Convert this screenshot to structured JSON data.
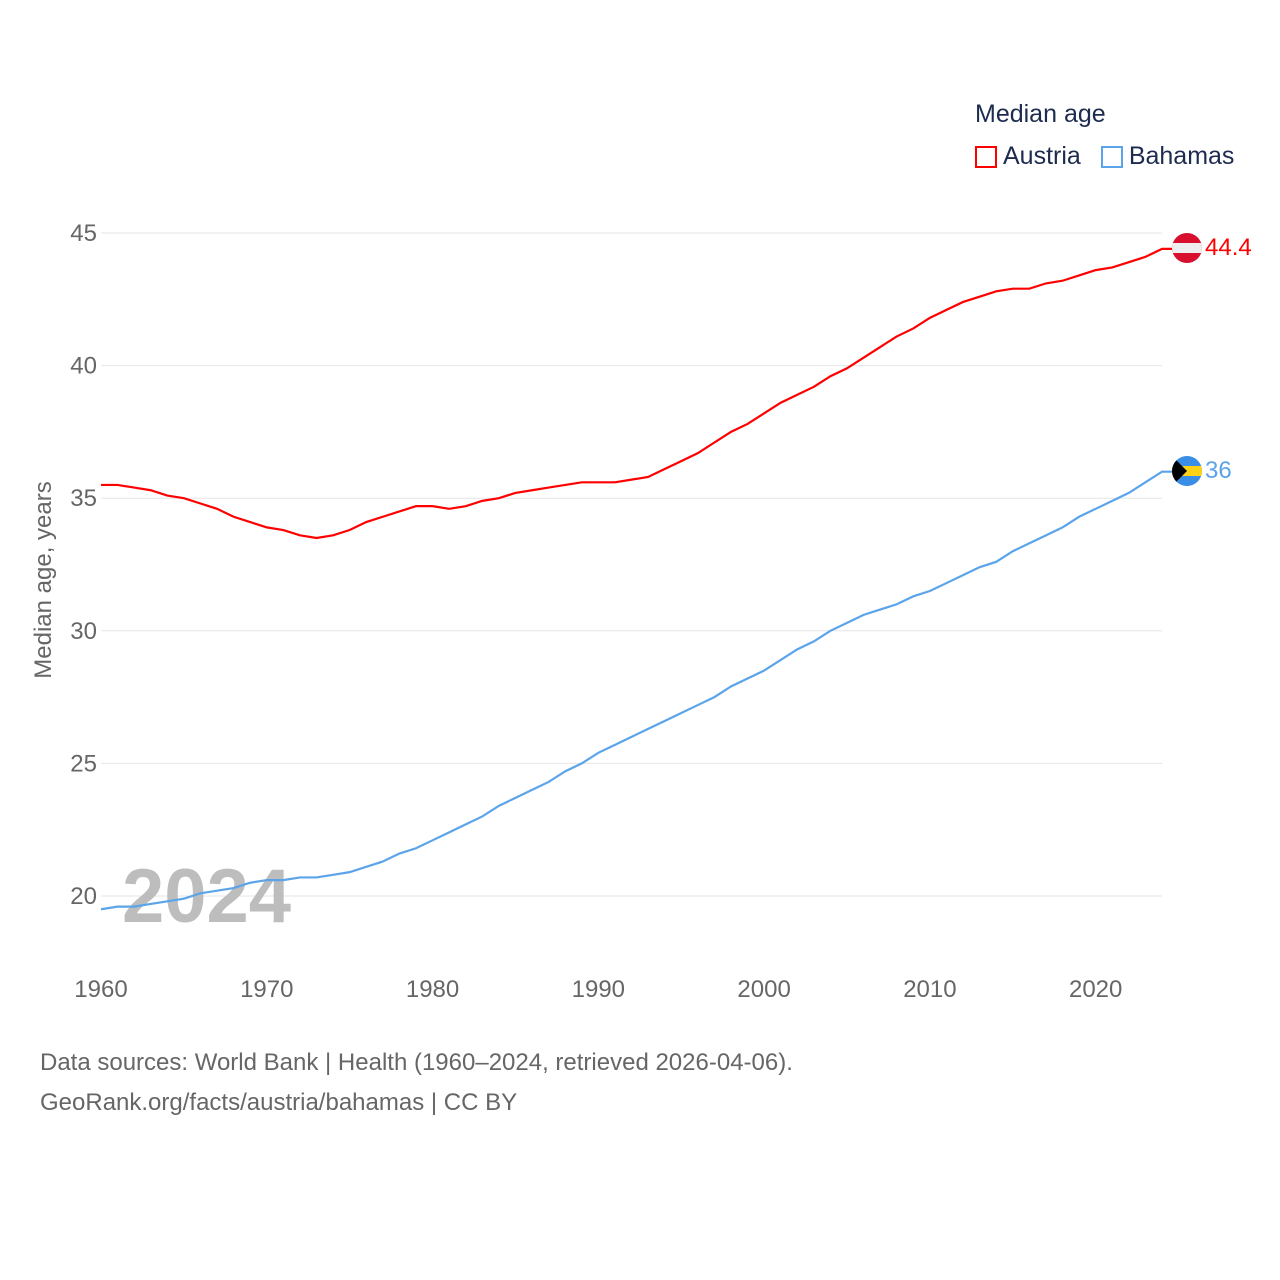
{
  "chart_data": {
    "type": "line",
    "title": "Median age",
    "xlabel": "",
    "ylabel": "Median age, years",
    "xlim": [
      1960,
      2024
    ],
    "ylim": [
      18,
      46
    ],
    "yticks": [
      20,
      25,
      30,
      35,
      40,
      45
    ],
    "xticks": [
      1960,
      1970,
      1980,
      1990,
      2000,
      2010,
      2020
    ],
    "grid": true,
    "legend_placement": "top-right",
    "watermark_year": "2024",
    "x": [
      1960,
      1961,
      1962,
      1963,
      1964,
      1965,
      1966,
      1967,
      1968,
      1969,
      1970,
      1971,
      1972,
      1973,
      1974,
      1975,
      1976,
      1977,
      1978,
      1979,
      1980,
      1981,
      1982,
      1983,
      1984,
      1985,
      1986,
      1987,
      1988,
      1989,
      1990,
      1991,
      1992,
      1993,
      1994,
      1995,
      1996,
      1997,
      1998,
      1999,
      2000,
      2001,
      2002,
      2003,
      2004,
      2005,
      2006,
      2007,
      2008,
      2009,
      2010,
      2011,
      2012,
      2013,
      2014,
      2015,
      2016,
      2017,
      2018,
      2019,
      2020,
      2021,
      2022,
      2023,
      2024
    ],
    "series": [
      {
        "name": "Austria",
        "color": "#ff0000",
        "end_label": "44.4",
        "flag": "austria-flag",
        "values": [
          35.5,
          35.5,
          35.4,
          35.3,
          35.1,
          35.0,
          34.8,
          34.6,
          34.3,
          34.1,
          33.9,
          33.8,
          33.6,
          33.5,
          33.6,
          33.8,
          34.1,
          34.3,
          34.5,
          34.7,
          34.7,
          34.6,
          34.7,
          34.9,
          35.0,
          35.2,
          35.3,
          35.4,
          35.5,
          35.6,
          35.6,
          35.6,
          35.7,
          35.8,
          36.1,
          36.4,
          36.7,
          37.1,
          37.5,
          37.8,
          38.2,
          38.6,
          38.9,
          39.2,
          39.6,
          39.9,
          40.3,
          40.7,
          41.1,
          41.4,
          41.8,
          42.1,
          42.4,
          42.6,
          42.8,
          42.9,
          42.9,
          43.1,
          43.2,
          43.4,
          43.6,
          43.7,
          43.9,
          44.1,
          44.4
        ]
      },
      {
        "name": "Bahamas",
        "color": "#5ba4ea",
        "end_label": "36",
        "flag": "bahamas-flag",
        "values": [
          19.5,
          19.6,
          19.6,
          19.7,
          19.8,
          19.9,
          20.1,
          20.2,
          20.3,
          20.5,
          20.6,
          20.6,
          20.7,
          20.7,
          20.8,
          20.9,
          21.1,
          21.3,
          21.6,
          21.8,
          22.1,
          22.4,
          22.7,
          23.0,
          23.4,
          23.7,
          24.0,
          24.3,
          24.7,
          25.0,
          25.4,
          25.7,
          26.0,
          26.3,
          26.6,
          26.9,
          27.2,
          27.5,
          27.9,
          28.2,
          28.5,
          28.9,
          29.3,
          29.6,
          30.0,
          30.3,
          30.6,
          30.8,
          31.0,
          31.3,
          31.5,
          31.8,
          32.1,
          32.4,
          32.6,
          33.0,
          33.3,
          33.6,
          33.9,
          34.3,
          34.6,
          34.9,
          35.2,
          35.6,
          36.0
        ]
      }
    ]
  },
  "footer": {
    "line1": "Data sources: World Bank | Health (1960–2024, retrieved 2026-04-06).",
    "line2": "GeoRank.org/facts/austria/bahamas | CC BY"
  }
}
